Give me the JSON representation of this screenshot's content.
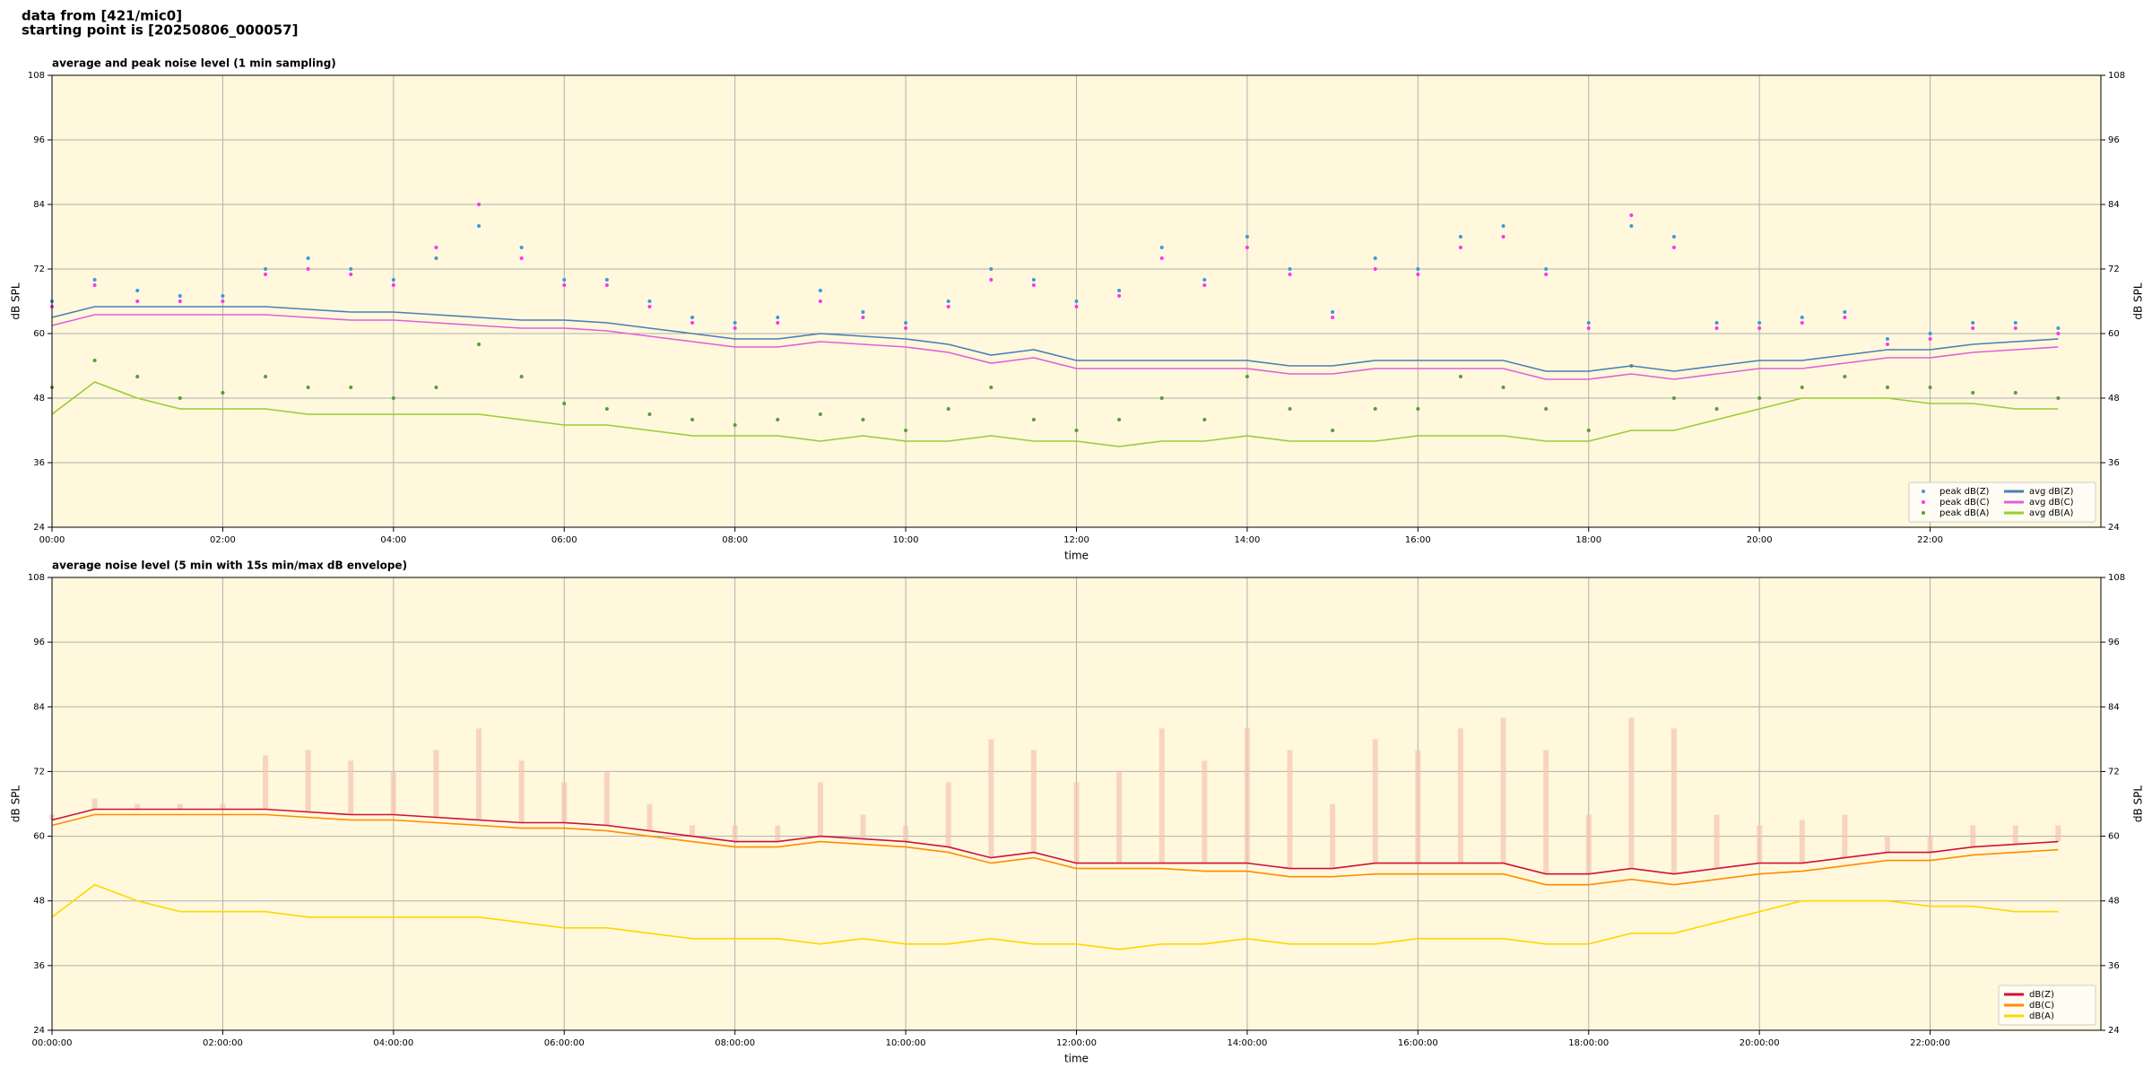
{
  "header": {
    "lines": [
      "data from [421/mic0]",
      "starting point is [20250806_000057]"
    ]
  },
  "chart_data": [
    {
      "type": "line",
      "title": "average and peak noise level (1 min sampling)",
      "xlabel": "time",
      "ylabel": "dB SPL",
      "xlim": [
        0,
        24
      ],
      "ylim": [
        24,
        108
      ],
      "yticks": [
        24,
        36,
        48,
        60,
        72,
        84,
        96,
        108
      ],
      "xticks": [
        {
          "value": 0,
          "label": "00:00"
        },
        {
          "value": 2,
          "label": "02:00"
        },
        {
          "value": 4,
          "label": "04:00"
        },
        {
          "value": 6,
          "label": "06:00"
        },
        {
          "value": 8,
          "label": "08:00"
        },
        {
          "value": 10,
          "label": "10:00"
        },
        {
          "value": 12,
          "label": "12:00"
        },
        {
          "value": 14,
          "label": "14:00"
        },
        {
          "value": 16,
          "label": "16:00"
        },
        {
          "value": 18,
          "label": "18:00"
        },
        {
          "value": 20,
          "label": "20:00"
        },
        {
          "value": 22,
          "label": "22:00"
        }
      ],
      "grid": true,
      "legend": "lower right",
      "legend_ncol": 2,
      "background": "#fff8dc",
      "x": [
        0,
        0.5,
        1,
        1.5,
        2,
        2.5,
        3,
        3.5,
        4,
        4.5,
        5,
        5.5,
        6,
        6.5,
        7,
        7.5,
        8,
        8.5,
        9,
        9.5,
        10,
        10.5,
        11,
        11.5,
        12,
        12.5,
        13,
        13.5,
        14,
        14.5,
        15,
        15.5,
        16,
        16.5,
        17,
        17.5,
        18,
        18.5,
        19,
        19.5,
        20,
        20.5,
        21,
        21.5,
        22,
        22.5,
        23,
        23.5
      ],
      "series": [
        {
          "name": "peak dB(Z)",
          "style": "scatter",
          "color": "#3a9ad9",
          "values": [
            66,
            70,
            68,
            67,
            67,
            72,
            74,
            72,
            70,
            74,
            80,
            76,
            70,
            70,
            66,
            63,
            62,
            63,
            68,
            64,
            62,
            66,
            72,
            70,
            66,
            68,
            76,
            70,
            78,
            72,
            64,
            74,
            72,
            78,
            80,
            72,
            62,
            80,
            78,
            62,
            62,
            63,
            64,
            59,
            60,
            62,
            62,
            61
          ]
        },
        {
          "name": "peak dB(C)",
          "style": "scatter",
          "color": "#ff33ee",
          "values": [
            65,
            69,
            66,
            66,
            66,
            71,
            72,
            71,
            69,
            76,
            84,
            74,
            69,
            69,
            65,
            62,
            61,
            62,
            66,
            63,
            61,
            65,
            70,
            69,
            65,
            67,
            74,
            69,
            76,
            71,
            63,
            72,
            71,
            76,
            78,
            71,
            61,
            82,
            76,
            61,
            61,
            62,
            63,
            58,
            59,
            61,
            61,
            60
          ]
        },
        {
          "name": "peak dB(A)",
          "style": "scatter",
          "color": "#5a9a3a",
          "values": [
            50,
            55,
            52,
            48,
            49,
            52,
            50,
            50,
            48,
            50,
            58,
            52,
            47,
            46,
            45,
            44,
            43,
            44,
            45,
            44,
            42,
            46,
            50,
            44,
            42,
            44,
            48,
            44,
            52,
            46,
            42,
            46,
            46,
            52,
            50,
            46,
            42,
            54,
            48,
            46,
            48,
            50,
            52,
            50,
            50,
            49,
            49,
            48
          ]
        },
        {
          "name": "avg dB(Z)",
          "style": "line",
          "color": "#4a7fb5",
          "values": [
            63,
            65,
            65,
            65,
            65,
            65,
            64.5,
            64,
            64,
            63.5,
            63,
            62.5,
            62.5,
            62,
            61,
            60,
            59,
            59,
            60,
            59.5,
            59,
            58,
            56,
            57,
            55,
            55,
            55,
            55,
            55,
            54,
            54,
            55,
            55,
            55,
            55,
            53,
            53,
            54,
            53,
            54,
            55,
            55,
            56,
            57,
            57,
            58,
            58.5,
            59
          ]
        },
        {
          "name": "avg dB(C)",
          "style": "line",
          "color": "#e060d8",
          "values": [
            61.5,
            63.5,
            63.5,
            63.5,
            63.5,
            63.5,
            63,
            62.5,
            62.5,
            62,
            61.5,
            61,
            61,
            60.5,
            59.5,
            58.5,
            57.5,
            57.5,
            58.5,
            58,
            57.5,
            56.5,
            54.5,
            55.5,
            53.5,
            53.5,
            53.5,
            53.5,
            53.5,
            52.5,
            52.5,
            53.5,
            53.5,
            53.5,
            53.5,
            51.5,
            51.5,
            52.5,
            51.5,
            52.5,
            53.5,
            53.5,
            54.5,
            55.5,
            55.5,
            56.5,
            57,
            57.5
          ]
        },
        {
          "name": "avg dB(A)",
          "style": "line",
          "color": "#9acd32",
          "values": [
            45,
            51,
            48,
            46,
            46,
            46,
            45,
            45,
            45,
            45,
            45,
            44,
            43,
            43,
            42,
            41,
            41,
            41,
            40,
            41,
            40,
            40,
            41,
            40,
            40,
            39,
            40,
            40,
            41,
            40,
            40,
            40,
            41,
            41,
            41,
            40,
            40,
            42,
            42,
            44,
            46,
            48,
            48,
            48,
            47,
            47,
            46,
            46
          ]
        }
      ]
    },
    {
      "type": "line",
      "title": "average noise level (5 min with 15s min/max dB envelope)",
      "xlabel": "time",
      "ylabel": "dB SPL",
      "xlim": [
        0,
        24
      ],
      "ylim": [
        24,
        108
      ],
      "yticks": [
        24,
        36,
        48,
        60,
        72,
        84,
        96,
        108
      ],
      "xticks": [
        {
          "value": 0,
          "label": "00:00:00"
        },
        {
          "value": 2,
          "label": "02:00:00"
        },
        {
          "value": 4,
          "label": "04:00:00"
        },
        {
          "value": 6,
          "label": "06:00:00"
        },
        {
          "value": 8,
          "label": "08:00:00"
        },
        {
          "value": 10,
          "label": "10:00:00"
        },
        {
          "value": 12,
          "label": "12:00:00"
        },
        {
          "value": 14,
          "label": "14:00:00"
        },
        {
          "value": 16,
          "label": "16:00:00"
        },
        {
          "value": 18,
          "label": "18:00:00"
        },
        {
          "value": 20,
          "label": "20:00:00"
        },
        {
          "value": 22,
          "label": "22:00:00"
        }
      ],
      "grid": true,
      "legend": "lower right",
      "legend_ncol": 1,
      "background": "#fff8dc",
      "x": [
        0,
        0.5,
        1,
        1.5,
        2,
        2.5,
        3,
        3.5,
        4,
        4.5,
        5,
        5.5,
        6,
        6.5,
        7,
        7.5,
        8,
        8.5,
        9,
        9.5,
        10,
        10.5,
        11,
        11.5,
        12,
        12.5,
        13,
        13.5,
        14,
        14.5,
        15,
        15.5,
        16,
        16.5,
        17,
        17.5,
        18,
        18.5,
        19,
        19.5,
        20,
        20.5,
        21,
        21.5,
        22,
        22.5,
        23,
        23.5
      ],
      "envelope": {
        "color": "#f5c4b0",
        "values": [
          64,
          67,
          66,
          66,
          66,
          75,
          76,
          74,
          72,
          76,
          80,
          74,
          70,
          72,
          66,
          62,
          62,
          62,
          70,
          64,
          62,
          70,
          78,
          76,
          70,
          72,
          80,
          74,
          80,
          76,
          66,
          78,
          76,
          80,
          82,
          76,
          64,
          82,
          80,
          64,
          62,
          63,
          64,
          60,
          60,
          62,
          62,
          62
        ]
      },
      "series": [
        {
          "name": "dB(Z)",
          "style": "line",
          "color": "#d0103a",
          "values": [
            63,
            65,
            65,
            65,
            65,
            65,
            64.5,
            64,
            64,
            63.5,
            63,
            62.5,
            62.5,
            62,
            61,
            60,
            59,
            59,
            60,
            59.5,
            59,
            58,
            56,
            57,
            55,
            55,
            55,
            55,
            55,
            54,
            54,
            55,
            55,
            55,
            55,
            53,
            53,
            54,
            53,
            54,
            55,
            55,
            56,
            57,
            57,
            58,
            58.5,
            59
          ]
        },
        {
          "name": "dB(C)",
          "style": "line",
          "color": "#ff8c00",
          "values": [
            62,
            64,
            64,
            64,
            64,
            64,
            63.5,
            63,
            63,
            62.5,
            62,
            61.5,
            61.5,
            61,
            60,
            59,
            58,
            58,
            59,
            58.5,
            58,
            57,
            55,
            56,
            54,
            54,
            54,
            53.5,
            53.5,
            52.5,
            52.5,
            53,
            53,
            53,
            53,
            51,
            51,
            52,
            51,
            52,
            53,
            53.5,
            54.5,
            55.5,
            55.5,
            56.5,
            57,
            57.5
          ]
        },
        {
          "name": "dB(A)",
          "style": "line",
          "color": "#ffd700",
          "values": [
            45,
            51,
            48,
            46,
            46,
            46,
            45,
            45,
            45,
            45,
            45,
            44,
            43,
            43,
            42,
            41,
            41,
            41,
            40,
            41,
            40,
            40,
            41,
            40,
            40,
            39,
            40,
            40,
            41,
            40,
            40,
            40,
            41,
            41,
            41,
            40,
            40,
            42,
            42,
            44,
            46,
            48,
            48,
            48,
            47,
            47,
            46,
            46
          ]
        }
      ]
    }
  ]
}
